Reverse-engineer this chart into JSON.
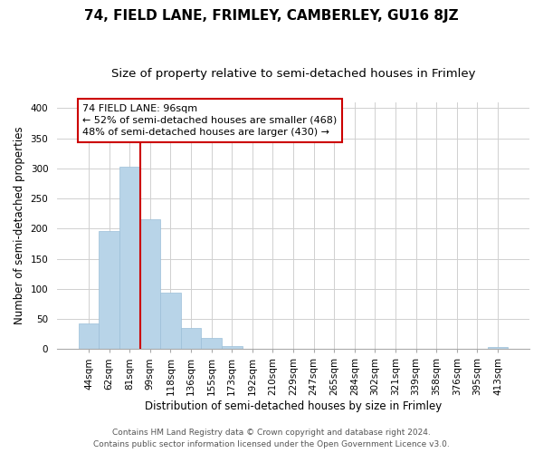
{
  "title": "74, FIELD LANE, FRIMLEY, CAMBERLEY, GU16 8JZ",
  "subtitle": "Size of property relative to semi-detached houses in Frimley",
  "xlabel": "Distribution of semi-detached houses by size in Frimley",
  "ylabel": "Number of semi-detached properties",
  "bin_labels": [
    "44sqm",
    "62sqm",
    "81sqm",
    "99sqm",
    "118sqm",
    "136sqm",
    "155sqm",
    "173sqm",
    "192sqm",
    "210sqm",
    "229sqm",
    "247sqm",
    "265sqm",
    "284sqm",
    "302sqm",
    "321sqm",
    "339sqm",
    "358sqm",
    "376sqm",
    "395sqm",
    "413sqm"
  ],
  "bar_heights": [
    43,
    196,
    303,
    215,
    94,
    35,
    18,
    5,
    0,
    0,
    0,
    0,
    0,
    0,
    0,
    0,
    0,
    0,
    0,
    0,
    3
  ],
  "bar_color": "#b8d4e8",
  "bar_edge_color": "#9bbfd8",
  "highlight_line_color": "#cc0000",
  "annotation_title": "74 FIELD LANE: 96sqm",
  "annotation_line1": "← 52% of semi-detached houses are smaller (468)",
  "annotation_line2": "48% of semi-detached houses are larger (430) →",
  "annotation_box_facecolor": "#ffffff",
  "annotation_box_edgecolor": "#cc0000",
  "ylim": [
    0,
    410
  ],
  "yticks": [
    0,
    50,
    100,
    150,
    200,
    250,
    300,
    350,
    400
  ],
  "footer_line1": "Contains HM Land Registry data © Crown copyright and database right 2024.",
  "footer_line2": "Contains public sector information licensed under the Open Government Licence v3.0.",
  "title_fontsize": 11,
  "subtitle_fontsize": 9.5,
  "axis_label_fontsize": 8.5,
  "tick_fontsize": 7.5,
  "annotation_fontsize": 8,
  "footer_fontsize": 6.5,
  "background_color": "#ffffff",
  "grid_color": "#d0d0d0"
}
